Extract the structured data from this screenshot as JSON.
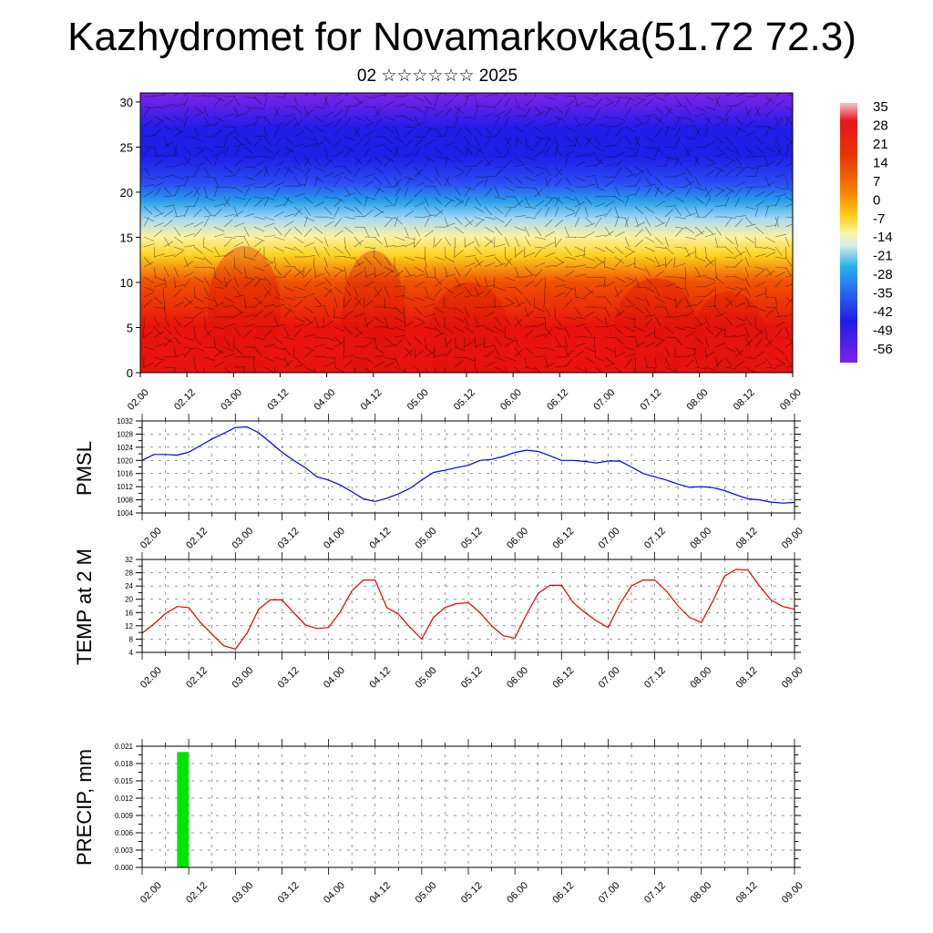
{
  "header": {
    "title": "Kazhydromet for Novamarkovka(51.72 72.3)",
    "subtitle": "02 ☆☆☆☆☆☆ 2025"
  },
  "chart_data": [
    {
      "type": "heatmap",
      "title": "",
      "xlabel": "",
      "ylabel": "",
      "x_ticks": [
        "02.00",
        "02.12",
        "03.00",
        "03.12",
        "04.00",
        "04.12",
        "05.00",
        "05.12",
        "06.00",
        "06.12",
        "07.00",
        "07.12",
        "08.00",
        "08.12",
        "09.00"
      ],
      "y_ticks": [
        "0",
        "5",
        "10",
        "15",
        "20",
        "25",
        "30"
      ],
      "ylim": [
        0,
        31
      ],
      "colorbar_labels": [
        "35",
        "28",
        "21",
        "14",
        "7",
        "0",
        "-7",
        "-14",
        "-21",
        "-28",
        "-35",
        "-42",
        "-49",
        "-56"
      ],
      "overlay": "wind barbs",
      "temperature_by_height": [
        [
          0,
          28
        ],
        [
          5,
          22
        ],
        [
          10,
          14
        ],
        [
          13,
          0
        ],
        [
          15,
          -12
        ],
        [
          17,
          -22
        ],
        [
          19,
          -33
        ],
        [
          21,
          -44
        ],
        [
          24,
          -55
        ],
        [
          27,
          -52
        ],
        [
          31,
          -58
        ]
      ]
    },
    {
      "type": "line",
      "ylabel": "PMSL",
      "series_color": "#0000e6",
      "x_ticks": [
        "02.00",
        "02.12",
        "03.00",
        "03.12",
        "04.00",
        "04.12",
        "05.00",
        "05.12",
        "06.00",
        "06.12",
        "07.00",
        "07.12",
        "08.00",
        "08.12",
        "09.00"
      ],
      "y_ticks": [
        "1004",
        "1008",
        "1012",
        "1016",
        "1020",
        "1024",
        "1028",
        "1032"
      ],
      "ylim": [
        1004,
        1032
      ],
      "x": [
        0,
        3,
        6,
        9,
        12,
        15,
        18,
        21,
        24,
        27,
        30,
        33,
        36,
        39,
        42,
        45,
        48,
        51,
        54,
        57,
        60,
        63,
        66,
        69,
        72,
        75,
        78,
        81,
        84,
        87,
        90,
        93,
        96,
        99,
        102,
        105,
        108,
        111,
        114,
        117,
        120,
        123,
        126,
        129,
        132,
        135,
        138,
        141,
        144,
        147,
        150,
        153,
        156,
        159,
        162,
        165,
        168
      ],
      "values": [
        1020,
        1021.8,
        1021.8,
        1021.6,
        1022.5,
        1024.5,
        1026.5,
        1028.2,
        1030,
        1030.2,
        1028.4,
        1025.5,
        1022.5,
        1020,
        1017.8,
        1015,
        1014,
        1012.5,
        1010.5,
        1008.3,
        1007.5,
        1008.5,
        1009.8,
        1011.5,
        1014,
        1016.3,
        1017,
        1017.8,
        1018.5,
        1020,
        1020.3,
        1021.2,
        1022.4,
        1023.1,
        1022.7,
        1021.4,
        1020,
        1020,
        1019.7,
        1019.2,
        1019.8,
        1019.8,
        1018,
        1016,
        1015,
        1014,
        1012.8,
        1011.8,
        1012,
        1011.7,
        1010.8,
        1009.5,
        1008.3,
        1008,
        1007.3,
        1007,
        1007.2
      ]
    },
    {
      "type": "line",
      "ylabel": "TEMP at 2 M",
      "series_color": "#e60000",
      "x_ticks": [
        "02.00",
        "02.12",
        "03.00",
        "03.12",
        "04.00",
        "04.12",
        "05.00",
        "05.12",
        "06.00",
        "06.12",
        "07.00",
        "07.12",
        "08.00",
        "08.12",
        "09.00"
      ],
      "y_ticks": [
        "4",
        "8",
        "12",
        "16",
        "20",
        "24",
        "28",
        "32"
      ],
      "ylim": [
        4,
        32
      ],
      "x": [
        0,
        3,
        6,
        9,
        12,
        15,
        18,
        21,
        24,
        27,
        30,
        33,
        36,
        39,
        42,
        45,
        48,
        51,
        54,
        57,
        60,
        63,
        66,
        69,
        72,
        75,
        78,
        81,
        84,
        87,
        90,
        93,
        96,
        99,
        102,
        105,
        108,
        111,
        114,
        117,
        120,
        123,
        126,
        129,
        132,
        135,
        138,
        141,
        144,
        147,
        150,
        153,
        156,
        159,
        162,
        165,
        168
      ],
      "values": [
        9.8,
        12.5,
        15.7,
        17.8,
        17.5,
        13,
        9.5,
        6,
        5,
        9.8,
        17,
        19.8,
        19.8,
        16,
        12.3,
        11.2,
        11.5,
        16.2,
        22.5,
        25.8,
        25.8,
        17.5,
        15.5,
        11.5,
        8,
        14.5,
        17.5,
        18.7,
        19,
        16,
        12,
        9,
        8.3,
        15.5,
        21.8,
        24.2,
        24.2,
        19,
        16,
        13.5,
        11.5,
        18.5,
        24,
        25.8,
        25.8,
        22.5,
        18,
        14.5,
        13,
        19.5,
        27,
        29,
        28.8,
        24,
        19.7,
        17.8,
        17
      ]
    },
    {
      "type": "bar",
      "ylabel": "PRECIP, mm",
      "bar_color": "#00e600",
      "x_ticks": [
        "02.00",
        "02.12",
        "03.00",
        "03.12",
        "04.00",
        "04.12",
        "05.00",
        "05.12",
        "06.00",
        "06.12",
        "07.00",
        "07.12",
        "08.00",
        "08.12",
        "09.00"
      ],
      "y_ticks": [
        "0.000",
        "0.003",
        "0.006",
        "0.009",
        "0.012",
        "0.015",
        "0.018",
        "0.021"
      ],
      "ylim": [
        0,
        0.021
      ],
      "bars": [
        {
          "x_start": 9,
          "x_end": 12,
          "value": 0.02
        }
      ]
    }
  ]
}
